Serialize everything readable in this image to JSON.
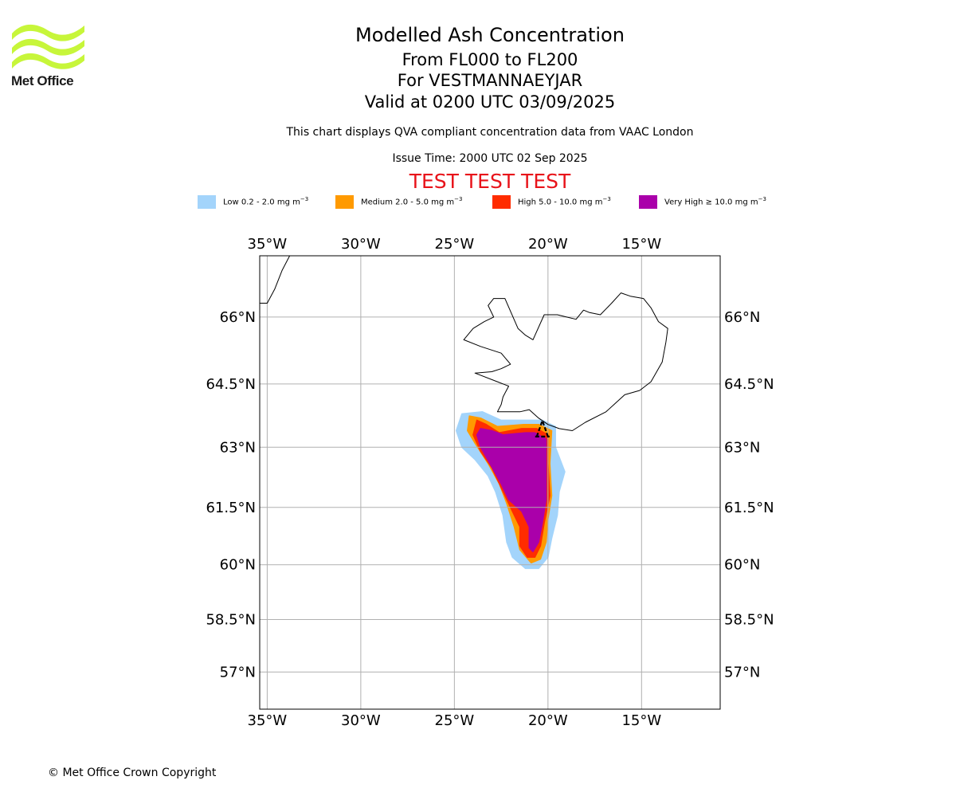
{
  "logo": {
    "text": "Met Office",
    "color": "#c7f63a"
  },
  "header": {
    "title": "Modelled Ash Concentration",
    "level_range": "From FL000 to FL200",
    "volcano": "For VESTMANNAEYJAR",
    "valid": "Valid at 0200 UTC 03/09/2025",
    "note": "This chart displays QVA compliant concentration data from VAAC London",
    "issue": "Issue Time: 2000 UTC 02 Sep 2025",
    "test_banner": "TEST TEST TEST"
  },
  "legend": [
    {
      "label": "Low 0.2 - 2.0 mg m",
      "sup": "−3",
      "color": "#a3d4fb"
    },
    {
      "label": "Medium 2.0 - 5.0 mg m",
      "sup": "−3",
      "color": "#ff9a00"
    },
    {
      "label": "High 5.0 - 10.0 mg m",
      "sup": "−3",
      "color": "#ff2c00"
    },
    {
      "label": "Very High ≥ 10.0 mg m",
      "sup": "−3",
      "color": "#aa00aa"
    }
  ],
  "map": {
    "extent": {
      "lon_min": -35.4,
      "lon_max": -10.8,
      "lat_min": 55.9,
      "lat_max": 67.3
    },
    "lon_ticks": [
      {
        "value": -35,
        "label": "35°W"
      },
      {
        "value": -30,
        "label": "30°W"
      },
      {
        "value": -25,
        "label": "25°W"
      },
      {
        "value": -20,
        "label": "20°W"
      },
      {
        "value": -15,
        "label": "15°W"
      }
    ],
    "lat_ticks": [
      {
        "value": 66,
        "label": "66°N"
      },
      {
        "value": 64.5,
        "label": "64.5°N"
      },
      {
        "value": 63,
        "label": "63°N"
      },
      {
        "value": 61.5,
        "label": "61.5°N"
      },
      {
        "value": 60,
        "label": "60°N"
      },
      {
        "value": 58.5,
        "label": "58.5°N"
      },
      {
        "value": 57,
        "label": "57°N"
      }
    ],
    "grid": true,
    "volcano_marker": {
      "name": "VESTMANNAEYJAR",
      "lon": -20.3,
      "lat": 63.45
    },
    "ash_layers": [
      {
        "level": "Low",
        "color": "#a3d4fb",
        "polygon": [
          [
            -24.6,
            63.8
          ],
          [
            -23.5,
            63.85
          ],
          [
            -22.5,
            63.65
          ],
          [
            -21.2,
            63.65
          ],
          [
            -20.3,
            63.65
          ],
          [
            -19.6,
            63.5
          ],
          [
            -19.6,
            63.0
          ],
          [
            -19.1,
            62.4
          ],
          [
            -19.4,
            61.9
          ],
          [
            -19.5,
            61.3
          ],
          [
            -19.8,
            60.7
          ],
          [
            -20.0,
            60.2
          ],
          [
            -20.5,
            59.9
          ],
          [
            -21.2,
            59.9
          ],
          [
            -21.9,
            60.2
          ],
          [
            -22.2,
            60.6
          ],
          [
            -22.4,
            61.3
          ],
          [
            -22.8,
            61.9
          ],
          [
            -23.2,
            62.3
          ],
          [
            -23.9,
            62.7
          ],
          [
            -24.6,
            63.0
          ],
          [
            -24.9,
            63.4
          ]
        ]
      },
      {
        "level": "Medium",
        "color": "#ff9a00",
        "polygon": [
          [
            -24.2,
            63.75
          ],
          [
            -23.6,
            63.7
          ],
          [
            -22.7,
            63.5
          ],
          [
            -21.3,
            63.55
          ],
          [
            -20.5,
            63.55
          ],
          [
            -19.8,
            63.4
          ],
          [
            -19.9,
            62.6
          ],
          [
            -19.8,
            61.8
          ],
          [
            -20.0,
            61.2
          ],
          [
            -20.1,
            60.6
          ],
          [
            -20.4,
            60.15
          ],
          [
            -20.9,
            60.05
          ],
          [
            -21.5,
            60.4
          ],
          [
            -21.8,
            61.0
          ],
          [
            -22.2,
            61.6
          ],
          [
            -22.6,
            62.1
          ],
          [
            -23.2,
            62.6
          ],
          [
            -23.9,
            63.1
          ],
          [
            -24.3,
            63.4
          ]
        ]
      },
      {
        "level": "High",
        "color": "#ff2c00",
        "polygon": [
          [
            -23.8,
            63.65
          ],
          [
            -23.3,
            63.55
          ],
          [
            -22.6,
            63.35
          ],
          [
            -21.4,
            63.45
          ],
          [
            -20.6,
            63.45
          ],
          [
            -20.0,
            63.3
          ],
          [
            -20.0,
            62.6
          ],
          [
            -19.9,
            61.8
          ],
          [
            -20.2,
            61.1
          ],
          [
            -20.4,
            60.5
          ],
          [
            -20.7,
            60.2
          ],
          [
            -21.1,
            60.2
          ],
          [
            -21.5,
            60.5
          ],
          [
            -21.5,
            61.0
          ],
          [
            -22.0,
            61.5
          ],
          [
            -22.5,
            62.0
          ],
          [
            -23.0,
            62.5
          ],
          [
            -23.6,
            62.9
          ],
          [
            -24.0,
            63.3
          ]
        ]
      },
      {
        "level": "Very High",
        "color": "#aa00aa",
        "polygon": [
          [
            -23.6,
            63.45
          ],
          [
            -23.0,
            63.4
          ],
          [
            -22.4,
            63.3
          ],
          [
            -21.2,
            63.35
          ],
          [
            -20.7,
            63.35
          ],
          [
            -20.1,
            63.2
          ],
          [
            -20.1,
            62.5
          ],
          [
            -20.1,
            61.7
          ],
          [
            -20.3,
            61.1
          ],
          [
            -20.5,
            60.6
          ],
          [
            -20.8,
            60.35
          ],
          [
            -21.0,
            60.45
          ],
          [
            -21.0,
            61.0
          ],
          [
            -21.4,
            61.4
          ],
          [
            -22.1,
            61.7
          ],
          [
            -22.5,
            62.1
          ],
          [
            -23.1,
            62.6
          ],
          [
            -23.6,
            63.0
          ],
          [
            -23.8,
            63.3
          ]
        ]
      }
    ],
    "coastlines": [
      {
        "name": "Iceland",
        "closed": true,
        "points": [
          [
            -22.7,
            63.85
          ],
          [
            -22.2,
            63.85
          ],
          [
            -21.5,
            63.85
          ],
          [
            -21.0,
            63.9
          ],
          [
            -20.5,
            63.7
          ],
          [
            -20.0,
            63.55
          ],
          [
            -19.4,
            63.45
          ],
          [
            -18.7,
            63.4
          ],
          [
            -18.0,
            63.6
          ],
          [
            -16.9,
            63.85
          ],
          [
            -15.9,
            64.25
          ],
          [
            -15.1,
            64.35
          ],
          [
            -14.5,
            64.55
          ],
          [
            -13.9,
            65.0
          ],
          [
            -13.7,
            65.45
          ],
          [
            -13.6,
            65.75
          ],
          [
            -14.1,
            65.9
          ],
          [
            -14.5,
            66.2
          ],
          [
            -14.9,
            66.4
          ],
          [
            -15.6,
            66.45
          ],
          [
            -16.1,
            66.52
          ],
          [
            -16.6,
            66.3
          ],
          [
            -17.2,
            66.05
          ],
          [
            -17.8,
            66.1
          ],
          [
            -18.1,
            66.15
          ],
          [
            -18.5,
            65.95
          ],
          [
            -19.0,
            66.0
          ],
          [
            -19.5,
            66.05
          ],
          [
            -20.2,
            66.05
          ],
          [
            -20.8,
            65.5
          ],
          [
            -21.2,
            65.6
          ],
          [
            -21.6,
            65.75
          ],
          [
            -22.3,
            66.4
          ],
          [
            -22.9,
            66.4
          ],
          [
            -23.2,
            66.25
          ],
          [
            -22.9,
            66.0
          ],
          [
            -23.4,
            65.9
          ],
          [
            -24.0,
            65.75
          ],
          [
            -24.5,
            65.5
          ],
          [
            -23.6,
            65.35
          ],
          [
            -22.5,
            65.2
          ],
          [
            -22.0,
            64.95
          ],
          [
            -22.5,
            64.85
          ],
          [
            -23.0,
            64.78
          ],
          [
            -23.9,
            64.75
          ],
          [
            -22.7,
            64.55
          ],
          [
            -22.1,
            64.45
          ],
          [
            -22.4,
            64.2
          ],
          [
            -22.5,
            64.02
          ],
          [
            -22.7,
            63.85
          ]
        ]
      },
      {
        "name": "Greenland",
        "closed": false,
        "points": [
          [
            -35.4,
            66.3
          ],
          [
            -35.0,
            66.3
          ],
          [
            -34.6,
            66.6
          ],
          [
            -34.2,
            67.0
          ],
          [
            -33.8,
            67.3
          ]
        ]
      }
    ]
  },
  "footer": {
    "copyright": "© Met Office Crown Copyright"
  }
}
